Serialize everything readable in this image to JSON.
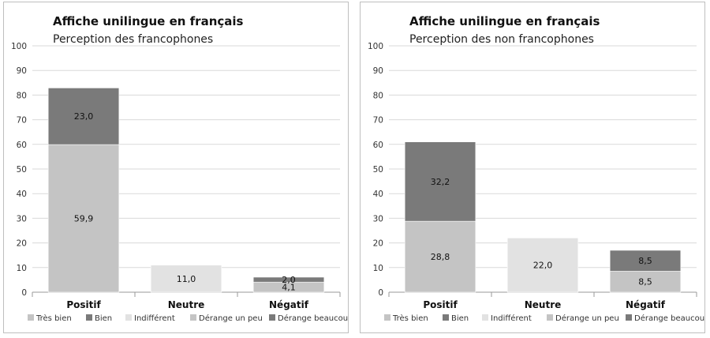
{
  "chart_data": [
    {
      "type": "bar",
      "stacked": true,
      "title": "Affiche unilingue en français",
      "subtitle": "Perception des francophones",
      "categories": [
        "Positif",
        "Neutre",
        "Négatif"
      ],
      "ylim": [
        0,
        100
      ],
      "yticks": [
        0,
        10,
        20,
        30,
        40,
        50,
        60,
        70,
        80,
        90,
        100
      ],
      "grid": true,
      "legend_position": "bottom",
      "series": [
        {
          "name": "Très bien",
          "color": "#c4c4c4",
          "values": [
            59.9,
            0,
            0
          ],
          "labels": [
            "59,9",
            "",
            ""
          ]
        },
        {
          "name": "Bien",
          "color": "#7a7a7a",
          "values": [
            23.0,
            0,
            0
          ],
          "labels": [
            "23,0",
            "",
            ""
          ]
        },
        {
          "name": "Indifférent",
          "color": "#e2e2e2",
          "values": [
            0,
            11.0,
            0
          ],
          "labels": [
            "",
            "11,0",
            ""
          ]
        },
        {
          "name": "Dérange un peu",
          "color": "#c4c4c4",
          "values": [
            0,
            0,
            4.1
          ],
          "labels": [
            "",
            "",
            "4,1"
          ]
        },
        {
          "name": "Dérange beaucoup",
          "color": "#7a7a7a",
          "values": [
            0,
            0,
            2.0
          ],
          "labels": [
            "",
            "",
            "2,0"
          ]
        }
      ]
    },
    {
      "type": "bar",
      "stacked": true,
      "title": "Affiche unilingue en français",
      "subtitle": "Perception des non francophones",
      "categories": [
        "Positif",
        "Neutre",
        "Négatif"
      ],
      "ylim": [
        0,
        100
      ],
      "yticks": [
        0,
        10,
        20,
        30,
        40,
        50,
        60,
        70,
        80,
        90,
        100
      ],
      "grid": true,
      "legend_position": "bottom",
      "series": [
        {
          "name": "Très bien",
          "color": "#c4c4c4",
          "values": [
            28.8,
            0,
            0
          ],
          "labels": [
            "28,8",
            "",
            ""
          ]
        },
        {
          "name": "Bien",
          "color": "#7a7a7a",
          "values": [
            32.2,
            0,
            0
          ],
          "labels": [
            "32,2",
            "",
            ""
          ]
        },
        {
          "name": "Indifférent",
          "color": "#e2e2e2",
          "values": [
            0,
            22.0,
            0
          ],
          "labels": [
            "",
            "22,0",
            ""
          ]
        },
        {
          "name": "Dérange un peu",
          "color": "#c4c4c4",
          "values": [
            0,
            0,
            8.5
          ],
          "labels": [
            "",
            "",
            "8,5"
          ]
        },
        {
          "name": "Dérange beaucoup",
          "color": "#7a7a7a",
          "values": [
            0,
            0,
            8.5
          ],
          "labels": [
            "",
            "",
            "8,5"
          ]
        }
      ]
    }
  ]
}
